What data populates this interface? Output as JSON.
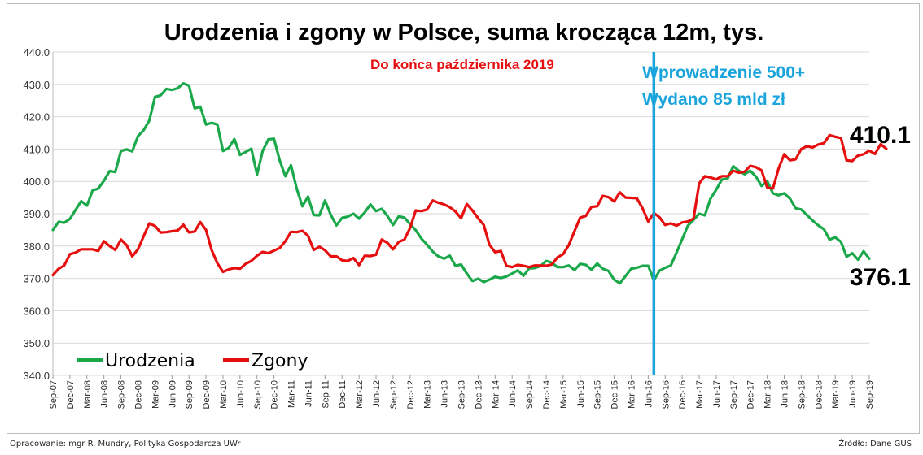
{
  "chart_data": {
    "type": "line",
    "title": "Urodzenia i zgony w Polsce, suma krocząca 12m, tys.",
    "subtitle": "Do końca października 2019",
    "ylim": [
      340,
      440
    ],
    "yticks": [
      "340.0",
      "350.0",
      "360.0",
      "370.0",
      "380.0",
      "390.0",
      "400.0",
      "410.0",
      "420.0",
      "430.0",
      "440.0"
    ],
    "xlabels": [
      "Sep-07",
      "Dec-07",
      "Mar-08",
      "Jun-08",
      "Sep-08",
      "Dec-08",
      "Mar-09",
      "Jun-09",
      "Sep-09",
      "Dec-09",
      "Mar-10",
      "Jun-10",
      "Sep-10",
      "Dec-10",
      "Mar-11",
      "Jun-11",
      "Sep-11",
      "Dec-11",
      "Mar-12",
      "Jun-12",
      "Sep-12",
      "Dec-12",
      "Mar-13",
      "Jun-13",
      "Sep-13",
      "Dec-13",
      "Mar-14",
      "Jun-14",
      "Sep-14",
      "Dec-14",
      "Mar-15",
      "Jun-15",
      "Sep-15",
      "Dec-15",
      "Mar-16",
      "Jun-16",
      "Sep-16",
      "Dec-16",
      "Mar-17",
      "Jun-17",
      "Sep-17",
      "Dec-17",
      "Mar-18",
      "Jun-18",
      "Sep-18",
      "Dec-18",
      "Mar-19",
      "Jun-19",
      "Sep-19"
    ],
    "grid": true,
    "legend_position": "bottom-left",
    "series": [
      {
        "name": "Urodzenia",
        "color": "#1aa84a",
        "values": [
          385,
          387.5,
          387.2,
          388.4,
          391.2,
          393.9,
          392.5,
          397.2,
          397.8,
          400.2,
          403.2,
          402.9,
          409.4,
          409.9,
          409.3,
          414,
          415.8,
          418.8,
          426.1,
          426.6,
          428.6,
          428.3,
          428.8,
          430.3,
          429.6,
          422.6,
          423.1,
          417.6,
          418.1,
          417.6,
          409.4,
          410.3,
          413.1,
          408.2,
          409.1,
          410.1,
          402.1,
          409.4,
          413,
          413.2,
          406.5,
          401.6,
          405,
          397.8,
          392.3,
          395.3,
          389.6,
          389.5,
          394.1,
          389.7,
          386.4,
          388.7,
          389.1,
          390,
          388.5,
          390.4,
          392.9,
          390.8,
          391.5,
          389.3,
          386.5,
          389.2,
          388.8,
          386.8,
          384.9,
          382.3,
          380.4,
          378.3,
          376.8,
          376.1,
          377,
          373.9,
          374.3,
          371.5,
          369.2,
          369.9,
          368.9,
          369.6,
          370.5,
          370.1,
          370.6,
          371.5,
          372.5,
          370.8,
          373.1,
          373.2,
          373.8,
          375.4,
          374.9,
          373.5,
          373.5,
          374,
          372.6,
          374.5,
          374.2,
          372.7,
          374.6,
          373,
          372.3,
          369.6,
          368.5,
          370.7,
          373,
          373.3,
          373.9,
          373.9,
          369.4,
          372.4,
          373.3,
          374,
          378,
          382.1,
          386.3,
          388.1,
          390,
          389.5,
          394.7,
          397.4,
          400.6,
          400.8,
          404.7,
          403.3,
          402.2,
          403.3,
          401.5,
          398.6,
          400.1,
          396.3,
          395.7,
          396.3,
          394.7,
          391.7,
          391.3,
          389.6,
          387.9,
          386.4,
          385.2,
          382,
          382.7,
          381.3,
          376.7,
          377.8,
          375.8,
          378.4,
          376.1
        ]
      },
      {
        "name": "Zgony",
        "color": "#e60f0f",
        "values": [
          371,
          373,
          374,
          377.5,
          378,
          379,
          379,
          379,
          378.5,
          381.5,
          380,
          378.8,
          382,
          380.3,
          376.8,
          379,
          383,
          387,
          386.2,
          384.2,
          384.3,
          384.6,
          384.8,
          386.6,
          384.2,
          384.5,
          387.4,
          385,
          378.8,
          374.7,
          372,
          372.8,
          373.2,
          373,
          374.5,
          375.4,
          377,
          378.2,
          377.8,
          378.6,
          379.4,
          381.5,
          384.4,
          384.3,
          384.7,
          383.2,
          378.8,
          379.8,
          378.7,
          376.8,
          376.8,
          375.6,
          375.4,
          376.3,
          374.1,
          377,
          376.9,
          377.3,
          382,
          381,
          379,
          381.3,
          382,
          385.6,
          391,
          390.8,
          391.3,
          394.1,
          393.4,
          392.9,
          392,
          390.7,
          388.6,
          393,
          391,
          388.6,
          386.5,
          380.4,
          378.1,
          378.5,
          373.9,
          373.5,
          374.2,
          373.9,
          373.5,
          374,
          374,
          373.9,
          374.3,
          376.5,
          377.5,
          380.3,
          384.6,
          388.8,
          389.3,
          392.1,
          392.3,
          395.5,
          395.1,
          393.8,
          396.6,
          395,
          394.9,
          394.8,
          391.7,
          387.6,
          390.2,
          388.9,
          386.5,
          387,
          386.3,
          387.3,
          387.6,
          388.5,
          399.4,
          401.6,
          401.2,
          400.6,
          401.6,
          401.6,
          403.3,
          402.7,
          403,
          404.8,
          404.4,
          403.4,
          398.1,
          397.8,
          404,
          408.4,
          406.5,
          406.8,
          410,
          410.9,
          410.5,
          411.4,
          411.8,
          414.3,
          413.8,
          413.4,
          406.5,
          406.3,
          408,
          408.4,
          409.5,
          408.5,
          411.5,
          410.1
        ]
      }
    ],
    "annotations": {
      "vline_label_1": "Wprowadzenie 500+",
      "vline_label_2": "Wydano 85 mld zł",
      "vline_color": "#1aa4dc",
      "vline_at_index": 106,
      "last_zgony": "410.1",
      "last_urodzenia": "376.1"
    }
  },
  "footer": {
    "left": "Opracowanie: mgr R. Mundry, Polityka Gospodarcza UWr",
    "right": "Źródło: Dane GUS"
  }
}
